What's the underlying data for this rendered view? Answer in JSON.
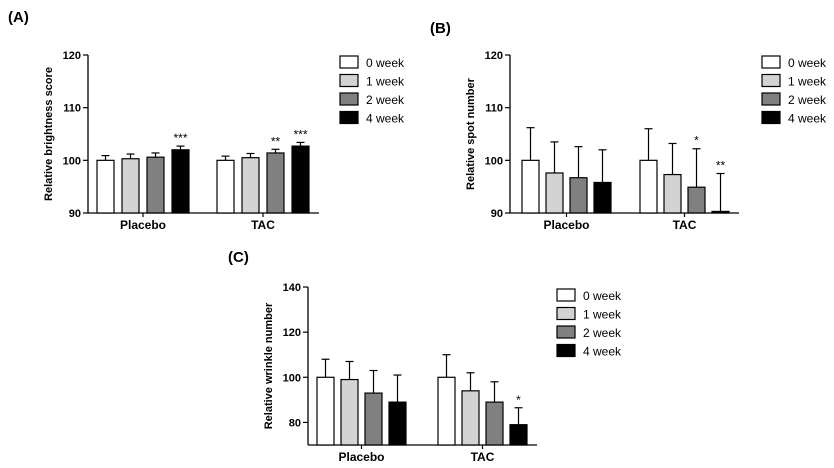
{
  "chart_data": [
    {
      "id": "A",
      "type": "bar",
      "panel_label": "(A)",
      "title": "",
      "ylabel": "Relative brightness score",
      "ylim": [
        90,
        120
      ],
      "yticks": [
        90,
        100,
        110,
        120
      ],
      "categories": [
        "Placebo",
        "TAC"
      ],
      "series": [
        {
          "name": "0 week",
          "color": "#ffffff",
          "values": [
            100.0,
            100.0
          ],
          "errors": [
            0.9,
            0.8
          ]
        },
        {
          "name": "1 week",
          "color": "#d3d3d3",
          "values": [
            100.3,
            100.5
          ],
          "errors": [
            0.9,
            0.8
          ]
        },
        {
          "name": "2 week",
          "color": "#808080",
          "values": [
            100.6,
            101.4
          ],
          "errors": [
            0.8,
            0.7
          ]
        },
        {
          "name": "4 week",
          "color": "#000000",
          "values": [
            102.0,
            102.7
          ],
          "errors": [
            0.7,
            0.7
          ]
        }
      ],
      "annotations": [
        {
          "category": 0,
          "series": 3,
          "text": "***"
        },
        {
          "category": 1,
          "series": 2,
          "text": "**"
        },
        {
          "category": 1,
          "series": 3,
          "text": "***"
        }
      ],
      "legend_position": "right"
    },
    {
      "id": "B",
      "type": "bar",
      "panel_label": "(B)",
      "title": "",
      "ylabel": "Relative spot  number",
      "ylim": [
        90,
        120
      ],
      "yticks": [
        90,
        100,
        110,
        120
      ],
      "categories": [
        "Placebo",
        "TAC"
      ],
      "series": [
        {
          "name": "0 week",
          "color": "#ffffff",
          "values": [
            100.0,
            100.0
          ],
          "errors": [
            6.2,
            6.0
          ]
        },
        {
          "name": "1 week",
          "color": "#d3d3d3",
          "values": [
            97.6,
            97.3
          ],
          "errors": [
            5.9,
            5.9
          ]
        },
        {
          "name": "2 week",
          "color": "#808080",
          "values": [
            96.7,
            94.9
          ],
          "errors": [
            5.9,
            7.3
          ]
        },
        {
          "name": "4 week",
          "color": "#000000",
          "values": [
            95.8,
            90.3
          ],
          "errors": [
            6.2,
            7.2
          ]
        }
      ],
      "annotations": [
        {
          "category": 1,
          "series": 2,
          "text": "*"
        },
        {
          "category": 1,
          "series": 3,
          "text": "**"
        }
      ],
      "legend_position": "right"
    },
    {
      "id": "C",
      "type": "bar",
      "panel_label": "(C)",
      "title": "",
      "ylabel": "Relative wrinkle number",
      "ylim": [
        70,
        140
      ],
      "yticks": [
        80,
        100,
        120,
        140
      ],
      "categories": [
        "Placebo",
        "TAC"
      ],
      "series": [
        {
          "name": "0 week",
          "color": "#ffffff",
          "values": [
            100.0,
            100.0
          ],
          "errors": [
            8.0,
            10.0
          ]
        },
        {
          "name": "1 week",
          "color": "#d3d3d3",
          "values": [
            99.0,
            94.0
          ],
          "errors": [
            8.0,
            8.0
          ]
        },
        {
          "name": "2 week",
          "color": "#808080",
          "values": [
            93.0,
            89.0
          ],
          "errors": [
            10.0,
            9.0
          ]
        },
        {
          "name": "4 week",
          "color": "#000000",
          "values": [
            89.0,
            79.0
          ],
          "errors": [
            12.0,
            7.5
          ]
        }
      ],
      "annotations": [
        {
          "category": 1,
          "series": 3,
          "text": "*"
        }
      ],
      "legend_position": "right"
    }
  ]
}
